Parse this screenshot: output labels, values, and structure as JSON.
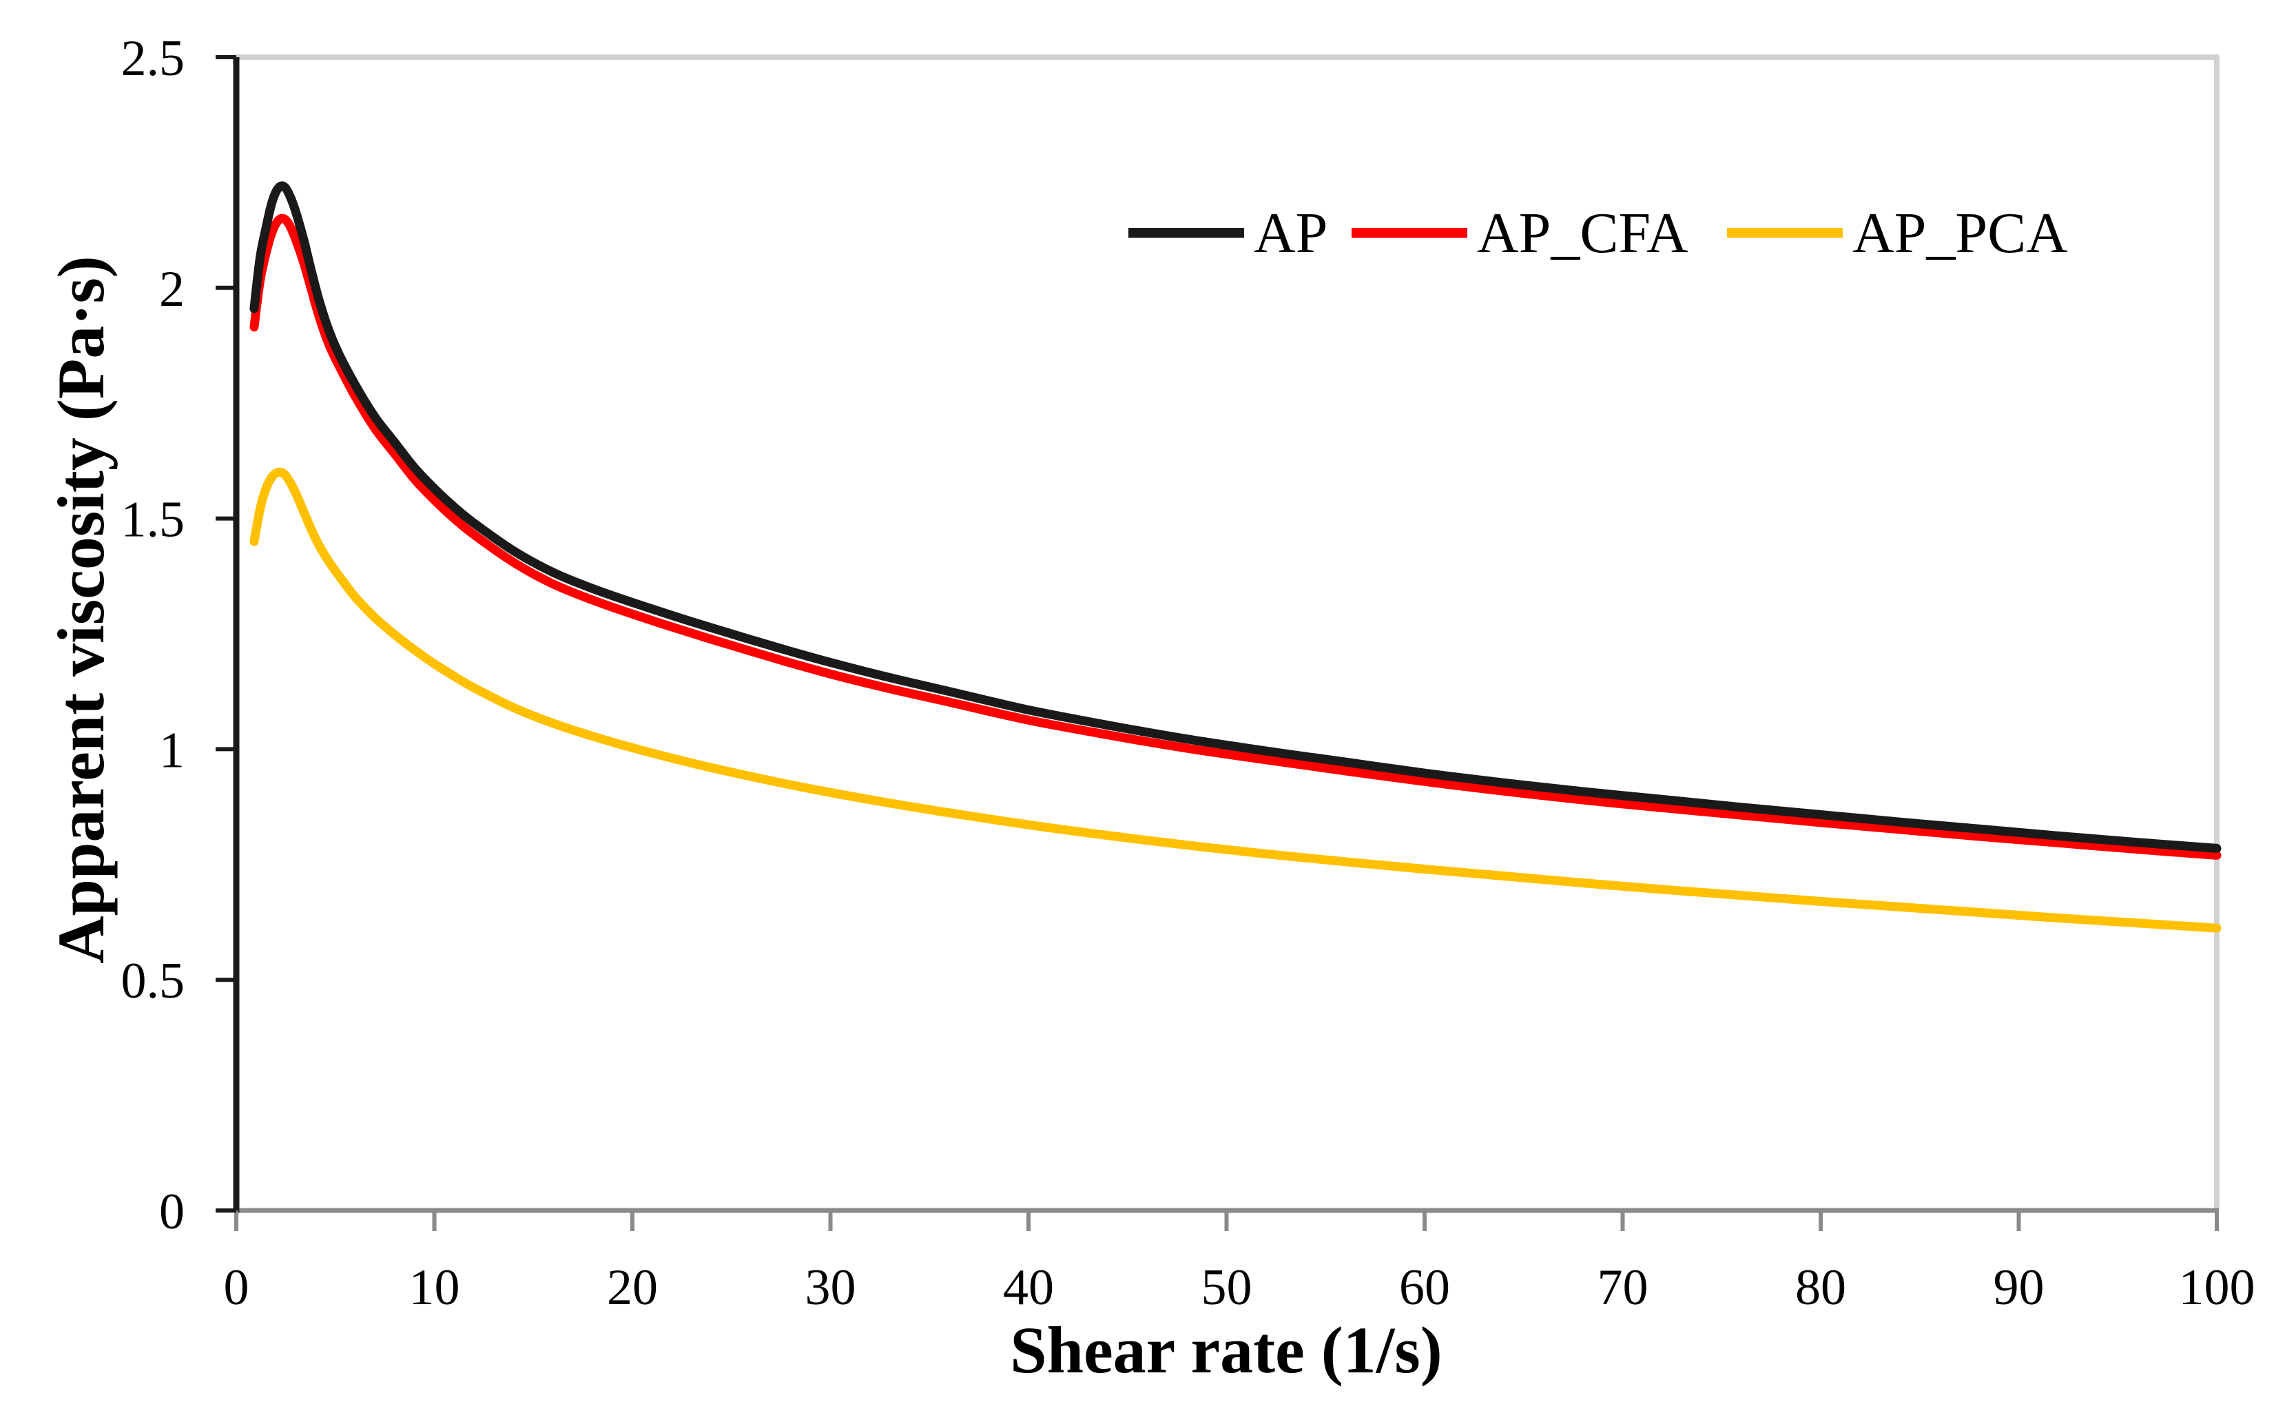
{
  "figure": {
    "background": "#ffffff"
  },
  "chart_data": {
    "type": "line",
    "title": "",
    "xlabel": "Shear rate (1/s)",
    "ylabel": "Apparent viscosity (Pa·s)",
    "xlim": [
      0,
      100
    ],
    "ylim": [
      0,
      2.5
    ],
    "x_ticks": [
      0,
      10,
      20,
      30,
      40,
      50,
      60,
      70,
      80,
      90,
      100
    ],
    "y_ticks": [
      0,
      0.5,
      1,
      1.5,
      2,
      2.5
    ],
    "y_tick_labels": [
      "0",
      "0.5",
      "1",
      "1.5",
      "2",
      "2.5"
    ],
    "grid": false,
    "legend": {
      "position": "top-right-inside",
      "entries": [
        "AP",
        "AP_CFA",
        "AP_PCA"
      ]
    },
    "styles": {
      "x_axis_color": "#8a8a8a",
      "y_axis_color": "#1a1a1a",
      "plot_border_color": "#d1d1d4",
      "text_color": "#000000",
      "curve_width": 13,
      "axis_width": 8,
      "tick_width": 6
    },
    "series": [
      {
        "name": "AP",
        "color": "#1a1a1a",
        "points": [
          [
            0.9,
            1.955
          ],
          [
            1.2,
            2.065
          ],
          [
            1.5,
            2.13
          ],
          [
            1.8,
            2.185
          ],
          [
            2.1,
            2.215
          ],
          [
            2.4,
            2.22
          ],
          [
            2.7,
            2.2
          ],
          [
            3.0,
            2.165
          ],
          [
            3.4,
            2.105
          ],
          [
            3.8,
            2.035
          ],
          [
            4.2,
            1.97
          ],
          [
            4.7,
            1.905
          ],
          [
            5.2,
            1.855
          ],
          [
            6,
            1.79
          ],
          [
            7,
            1.72
          ],
          [
            8,
            1.665
          ],
          [
            9,
            1.61
          ],
          [
            10,
            1.565
          ],
          [
            11,
            1.525
          ],
          [
            12,
            1.49
          ],
          [
            14,
            1.43
          ],
          [
            16,
            1.383
          ],
          [
            18,
            1.348
          ],
          [
            20,
            1.318
          ],
          [
            22.5,
            1.283
          ],
          [
            25,
            1.25
          ],
          [
            27.5,
            1.218
          ],
          [
            30,
            1.188
          ],
          [
            33,
            1.155
          ],
          [
            36,
            1.125
          ],
          [
            40,
            1.085
          ],
          [
            44,
            1.052
          ],
          [
            48,
            1.022
          ],
          [
            52,
            0.996
          ],
          [
            56,
            0.972
          ],
          [
            60,
            0.948
          ],
          [
            64,
            0.927
          ],
          [
            68,
            0.908
          ],
          [
            72,
            0.891
          ],
          [
            76,
            0.874
          ],
          [
            80,
            0.858
          ],
          [
            84,
            0.842
          ],
          [
            88,
            0.827
          ],
          [
            92,
            0.812
          ],
          [
            96,
            0.798
          ],
          [
            100,
            0.785
          ]
        ]
      },
      {
        "name": "AP_CFA",
        "color": "#fe0000",
        "points": [
          [
            0.9,
            1.915
          ],
          [
            1.2,
            2.015
          ],
          [
            1.5,
            2.075
          ],
          [
            1.8,
            2.12
          ],
          [
            2.1,
            2.145
          ],
          [
            2.4,
            2.15
          ],
          [
            2.7,
            2.135
          ],
          [
            3.0,
            2.105
          ],
          [
            3.4,
            2.055
          ],
          [
            3.8,
            1.995
          ],
          [
            4.2,
            1.935
          ],
          [
            4.7,
            1.875
          ],
          [
            5.2,
            1.83
          ],
          [
            6,
            1.765
          ],
          [
            7,
            1.695
          ],
          [
            8,
            1.64
          ],
          [
            9,
            1.585
          ],
          [
            10,
            1.54
          ],
          [
            11,
            1.5
          ],
          [
            12,
            1.465
          ],
          [
            14,
            1.405
          ],
          [
            16,
            1.358
          ],
          [
            18,
            1.323
          ],
          [
            20,
            1.293
          ],
          [
            22.5,
            1.258
          ],
          [
            25,
            1.225
          ],
          [
            27.5,
            1.193
          ],
          [
            30,
            1.163
          ],
          [
            33,
            1.131
          ],
          [
            36,
            1.102
          ],
          [
            40,
            1.063
          ],
          [
            44,
            1.031
          ],
          [
            48,
            1.002
          ],
          [
            52,
            0.977
          ],
          [
            56,
            0.953
          ],
          [
            60,
            0.93
          ],
          [
            64,
            0.909
          ],
          [
            68,
            0.89
          ],
          [
            72,
            0.873
          ],
          [
            76,
            0.857
          ],
          [
            80,
            0.841
          ],
          [
            84,
            0.826
          ],
          [
            88,
            0.811
          ],
          [
            92,
            0.797
          ],
          [
            96,
            0.783
          ],
          [
            100,
            0.77
          ]
        ]
      },
      {
        "name": "AP_PCA",
        "color": "#ffc000",
        "points": [
          [
            0.9,
            1.45
          ],
          [
            1.2,
            1.52
          ],
          [
            1.5,
            1.565
          ],
          [
            1.8,
            1.59
          ],
          [
            2.1,
            1.6
          ],
          [
            2.4,
            1.597
          ],
          [
            2.7,
            1.58
          ],
          [
            3.0,
            1.555
          ],
          [
            3.4,
            1.515
          ],
          [
            3.8,
            1.475
          ],
          [
            4.2,
            1.44
          ],
          [
            4.7,
            1.405
          ],
          [
            5.2,
            1.375
          ],
          [
            6,
            1.33
          ],
          [
            7,
            1.285
          ],
          [
            8,
            1.248
          ],
          [
            9,
            1.215
          ],
          [
            10,
            1.185
          ],
          [
            11,
            1.158
          ],
          [
            12,
            1.133
          ],
          [
            14,
            1.09
          ],
          [
            16,
            1.056
          ],
          [
            18,
            1.028
          ],
          [
            20,
            1.003
          ],
          [
            22.5,
            0.975
          ],
          [
            25,
            0.95
          ],
          [
            27.5,
            0.927
          ],
          [
            30,
            0.906
          ],
          [
            33,
            0.883
          ],
          [
            36,
            0.862
          ],
          [
            40,
            0.836
          ],
          [
            44,
            0.813
          ],
          [
            48,
            0.792
          ],
          [
            52,
            0.773
          ],
          [
            56,
            0.756
          ],
          [
            60,
            0.74
          ],
          [
            64,
            0.725
          ],
          [
            68,
            0.71
          ],
          [
            72,
            0.696
          ],
          [
            76,
            0.683
          ],
          [
            80,
            0.67
          ],
          [
            84,
            0.658
          ],
          [
            88,
            0.646
          ],
          [
            92,
            0.634
          ],
          [
            96,
            0.623
          ],
          [
            100,
            0.612
          ]
        ]
      }
    ]
  }
}
